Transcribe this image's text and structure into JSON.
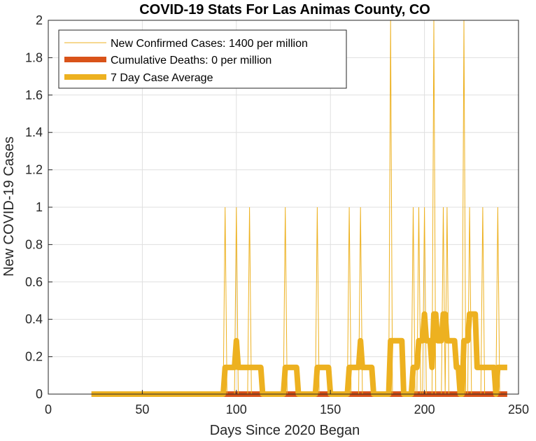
{
  "chart_data": {
    "type": "line",
    "title": "COVID-19 Stats For Las Animas County, CO",
    "xlabel": "Days Since 2020 Began",
    "ylabel": "New COVID-19 Cases",
    "xlim": [
      0,
      250
    ],
    "ylim": [
      0,
      2
    ],
    "xticks": [
      0,
      50,
      100,
      150,
      200,
      250
    ],
    "yticks": [
      0,
      0.2,
      0.4,
      0.6,
      0.8,
      1,
      1.2,
      1.4,
      1.6,
      1.8,
      2
    ],
    "grid": true,
    "legend_position": "top-left",
    "day_start": 23,
    "day_end": 244,
    "case_spike_days": [
      {
        "day": 94,
        "value": 1
      },
      {
        "day": 100,
        "value": 1
      },
      {
        "day": 107,
        "value": 1
      },
      {
        "day": 126,
        "value": 1
      },
      {
        "day": 143,
        "value": 1
      },
      {
        "day": 160,
        "value": 1
      },
      {
        "day": 166,
        "value": 1
      },
      {
        "day": 182,
        "value": 2
      },
      {
        "day": 194,
        "value": 1
      },
      {
        "day": 197,
        "value": 1
      },
      {
        "day": 200,
        "value": 1
      },
      {
        "day": 205,
        "value": 2
      },
      {
        "day": 210,
        "value": 1
      },
      {
        "day": 212,
        "value": 1
      },
      {
        "day": 221,
        "value": 2
      },
      {
        "day": 224,
        "value": 1
      },
      {
        "day": 231,
        "value": 1
      },
      {
        "day": 239,
        "value": 1
      }
    ],
    "series": [
      {
        "name": "New Confirmed Cases: 1400 per million",
        "color": "#EDB120",
        "style": "thin"
      },
      {
        "name": "Cumulative Deaths: 0 per million",
        "color": "#D95319",
        "style": "thick",
        "values_constant": 0
      },
      {
        "name": "7 Day Case Average",
        "color": "#EDB120",
        "style": "thick",
        "window": 7
      }
    ]
  }
}
